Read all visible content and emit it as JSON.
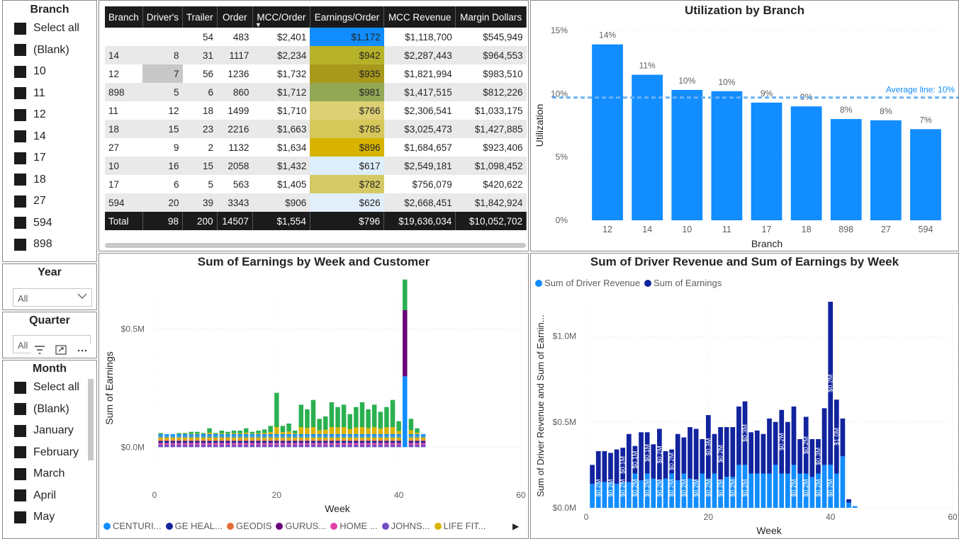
{
  "branch_slicer": {
    "title": "Branch",
    "items": [
      "Select all",
      "(Blank)",
      "10",
      "11",
      "12",
      "14",
      "17",
      "18",
      "27",
      "594",
      "898"
    ]
  },
  "year_slicer": {
    "title": "Year",
    "value": "All"
  },
  "quarter_slicer": {
    "title": "Quarter",
    "value": "All"
  },
  "month_slicer": {
    "title": "Month",
    "items": [
      "Select all",
      "(Blank)",
      "January",
      "February",
      "March",
      "April",
      "May"
    ]
  },
  "matrix": {
    "columns": [
      "Branch",
      "Driver's",
      "Trailer",
      "Order",
      "MCC/Order",
      "Earnings/Order",
      "MCC Revenue",
      "Margin Dollars"
    ],
    "sort_indicator": "▼",
    "rows": [
      [
        "",
        "",
        "54",
        "483",
        "$2,401",
        "$1,172",
        "$1,118,700",
        "$545,949"
      ],
      [
        "14",
        "8",
        "31",
        "1117",
        "$2,234",
        "$942",
        "$2,287,443",
        "$964,553"
      ],
      [
        "12",
        "7",
        "56",
        "1236",
        "$1,732",
        "$935",
        "$1,821,994",
        "$983,510"
      ],
      [
        "898",
        "5",
        "6",
        "860",
        "$1,712",
        "$981",
        "$1,417,515",
        "$812,226"
      ],
      [
        "11",
        "12",
        "18",
        "1499",
        "$1,710",
        "$766",
        "$2,306,541",
        "$1,033,175"
      ],
      [
        "18",
        "15",
        "23",
        "2216",
        "$1,663",
        "$785",
        "$3,025,473",
        "$1,427,885"
      ],
      [
        "27",
        "9",
        "2",
        "1132",
        "$1,634",
        "$896",
        "$1,684,657",
        "$923,406"
      ],
      [
        "10",
        "16",
        "15",
        "2058",
        "$1,432",
        "$617",
        "$2,549,181",
        "$1,098,452"
      ],
      [
        "17",
        "6",
        "5",
        "563",
        "$1,405",
        "$782",
        "$756,079",
        "$420,622"
      ],
      [
        "594",
        "20",
        "39",
        "3343",
        "$906",
        "$626",
        "$2,668,451",
        "$1,842,924"
      ]
    ],
    "earnings_colors": [
      "#118dff",
      "#b5b229",
      "#a8991c",
      "#93a855",
      "#dccf74",
      "#d6c75a",
      "#d8b400",
      "#ddeefc",
      "#d4c965",
      "#e2eefa"
    ],
    "total": [
      "Total",
      "98",
      "200",
      "14507",
      "$1,554",
      "$796",
      "$19,636,034",
      "$10,052,702"
    ]
  },
  "utilization_chart": {
    "title": "Utilization by Branch",
    "xlabel": "Branch",
    "ylabel": "Utilization",
    "yticks": [
      "0%",
      "5%",
      "10%",
      "15%"
    ],
    "average_label": "Average line: 10%",
    "bar_color": "#118dff",
    "avg_color": "#6cb2f5"
  },
  "earnings_chart": {
    "title": "Sum of Earnings by Week and Customer",
    "xlabel": "Week",
    "ylabel": "Sum of Earnings",
    "yticks": [
      "$0.0M",
      "$0.5M"
    ],
    "xticks": [
      "0",
      "20",
      "40",
      "60"
    ],
    "legend": [
      {
        "name": "CENTURI...",
        "color": "#118dff"
      },
      {
        "name": "GE HEAL...",
        "color": "#12239e"
      },
      {
        "name": "GEODIS",
        "color": "#e66c37"
      },
      {
        "name": "GURUS...",
        "color": "#6b007b"
      },
      {
        "name": "HOME ...",
        "color": "#e044a7"
      },
      {
        "name": "JOHNS...",
        "color": "#744ec2"
      },
      {
        "name": "LIFE FIT...",
        "color": "#d9b300"
      }
    ],
    "legend_arrow": "▶"
  },
  "revenue_chart": {
    "title": "Sum of Driver Revenue and Sum of Earnings by Week",
    "xlabel": "Week",
    "ylabel": "Sum of Driver Revenue and Sum of Earnin...",
    "yticks": [
      "$0.0M",
      "$0.5M",
      "$1.0M"
    ],
    "xticks": [
      "0",
      "20",
      "40",
      "60"
    ],
    "legend": [
      {
        "name": "Sum of Driver Revenue",
        "color": "#118dff"
      },
      {
        "name": "Sum of Earnings",
        "color": "#12239e"
      }
    ]
  },
  "chart_data": [
    {
      "type": "bar",
      "title": "Utilization by Branch",
      "xlabel": "Branch",
      "ylabel": "Utilization",
      "categories": [
        "12",
        "14",
        "10",
        "11",
        "17",
        "18",
        "898",
        "27",
        "594"
      ],
      "values": [
        0.139,
        0.115,
        0.103,
        0.102,
        0.093,
        0.09,
        0.08,
        0.079,
        0.072
      ],
      "labels": [
        "14%",
        "11%",
        "10%",
        "10%",
        "9%",
        "9%",
        "8%",
        "8%",
        "7%"
      ],
      "ylim": [
        0,
        0.15
      ],
      "average": 0.097,
      "grid": true
    },
    {
      "type": "bar",
      "title": "Sum of Earnings by Week and Customer",
      "xlabel": "Week",
      "ylabel": "Sum of Earnings",
      "stacked": true,
      "x": [
        1,
        2,
        3,
        4,
        5,
        6,
        7,
        8,
        9,
        10,
        11,
        12,
        13,
        14,
        15,
        16,
        17,
        18,
        19,
        20,
        21,
        22,
        23,
        24,
        25,
        26,
        27,
        28,
        29,
        30,
        31,
        32,
        33,
        34,
        35,
        36,
        37,
        38,
        39,
        40,
        41,
        42,
        43,
        44
      ],
      "totals": [
        0.06,
        0.055,
        0.055,
        0.06,
        0.06,
        0.065,
        0.065,
        0.06,
        0.08,
        0.06,
        0.07,
        0.065,
        0.07,
        0.07,
        0.08,
        0.065,
        0.07,
        0.075,
        0.09,
        0.23,
        0.09,
        0.1,
        0.07,
        0.18,
        0.16,
        0.2,
        0.12,
        0.13,
        0.19,
        0.17,
        0.18,
        0.14,
        0.17,
        0.19,
        0.16,
        0.18,
        0.15,
        0.17,
        0.2,
        0.11,
        0.71,
        0.12,
        0.08,
        0.01
      ],
      "week41_segments": [
        {
          "series": "CENTURI...",
          "value": 0.3
        },
        {
          "series": "GURUS...",
          "value": 0.28
        },
        {
          "series": "other",
          "value": 0.13
        }
      ],
      "xlim": [
        0,
        60
      ],
      "ylim": [
        -0.2,
        0.7
      ]
    },
    {
      "type": "bar",
      "title": "Sum of Driver Revenue and Sum of Earnings by Week",
      "xlabel": "Week",
      "ylabel": "Sum of Driver Revenue and Sum of Earnin...",
      "stacked": true,
      "x": [
        1,
        2,
        3,
        4,
        5,
        6,
        7,
        8,
        9,
        10,
        11,
        12,
        13,
        14,
        15,
        16,
        17,
        18,
        19,
        20,
        21,
        22,
        23,
        24,
        25,
        26,
        27,
        28,
        29,
        30,
        31,
        32,
        33,
        34,
        35,
        36,
        37,
        38,
        39,
        40,
        41,
        42,
        43,
        44
      ],
      "series": [
        {
          "name": "Sum of Driver Revenue",
          "values": [
            0.14,
            0.15,
            0.15,
            0.15,
            0.14,
            0.15,
            0.15,
            0.2,
            0.16,
            0.2,
            0.17,
            0.16,
            0.17,
            0.2,
            0.16,
            0.2,
            0.17,
            0.16,
            0.2,
            0.17,
            0.2,
            0.16,
            0.18,
            0.18,
            0.25,
            0.25,
            0.2,
            0.2,
            0.2,
            0.2,
            0.25,
            0.2,
            0.2,
            0.25,
            0.2,
            0.2,
            0.18,
            0.2,
            0.25,
            0.25,
            0.2,
            0.3,
            0.03,
            0.01
          ],
          "labels": [
            "$0.2M",
            "$0.2M",
            "$0.2M",
            "$0.2M",
            "$0.2M",
            "$0.2M",
            "$0.2M",
            "$0.2M",
            "$0.2M",
            "$0.2M",
            "$0.2M",
            "$0.2M",
            "$0.2M",
            "$0.2M",
            "$0.2M",
            "$0.2M",
            "$0.2M"
          ]
        },
        {
          "name": "Sum of Earnings",
          "values": [
            0.11,
            0.18,
            0.18,
            0.17,
            0.2,
            0.2,
            0.28,
            0.16,
            0.28,
            0.24,
            0.2,
            0.3,
            0.16,
            0.14,
            0.27,
            0.21,
            0.3,
            0.3,
            0.2,
            0.37,
            0.23,
            0.31,
            0.29,
            0.29,
            0.34,
            0.37,
            0.24,
            0.25,
            0.23,
            0.32,
            0.25,
            0.37,
            0.3,
            0.34,
            0.2,
            0.33,
            0.22,
            0.2,
            0.33,
            0.95,
            0.43,
            0.22,
            0.02,
            0.0
          ],
          "labels": [
            "$0.1M",
            "$0.1M",
            "$0.1M",
            "$0.2M",
            "$0.2M",
            "$0.3M",
            "$0.2M",
            "$0.3M",
            "$0.2M",
            "$0.2M",
            "$0.3M",
            "$0.2M",
            "$1.0M"
          ]
        }
      ],
      "xlim": [
        0,
        60
      ],
      "ylim": [
        0,
        1.2
      ]
    }
  ]
}
